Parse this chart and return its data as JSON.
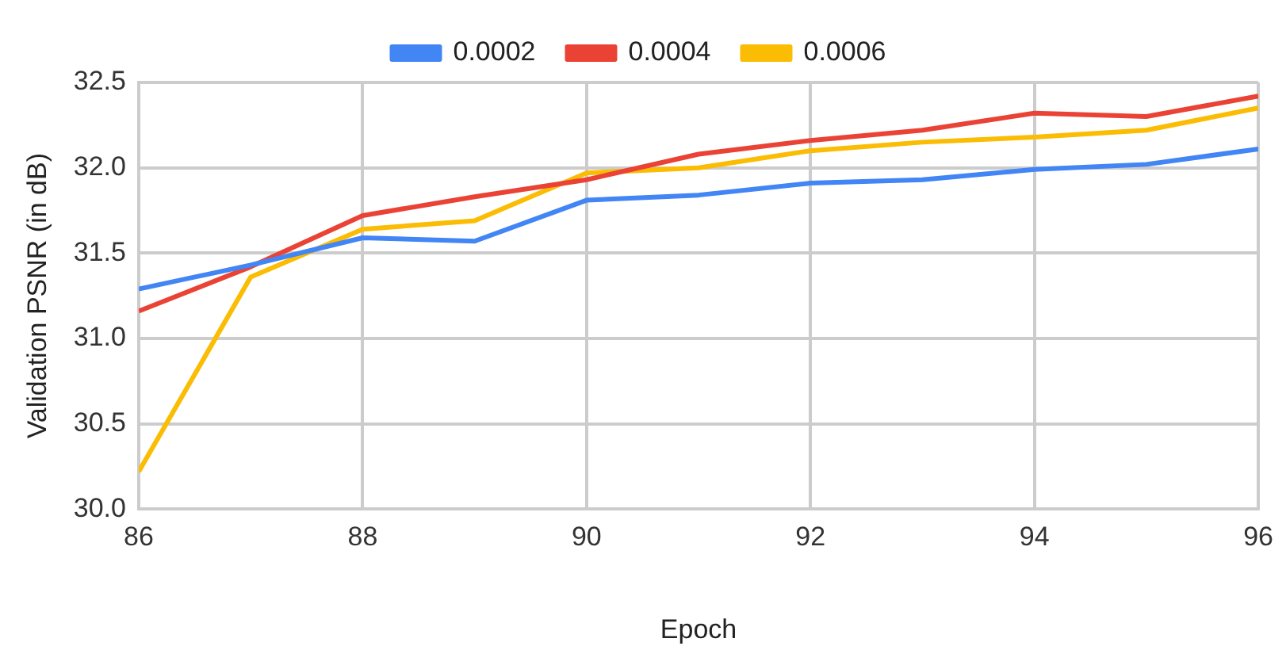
{
  "chart_data": {
    "type": "line",
    "xlabel": "Epoch",
    "ylabel": "Validation PSNR (in dB)",
    "x": [
      86,
      87,
      88,
      89,
      90,
      91,
      92,
      93,
      94,
      95,
      96
    ],
    "series": [
      {
        "name": "0.0002",
        "color": "#4285f4",
        "values": [
          31.29,
          31.43,
          31.59,
          31.57,
          31.81,
          31.84,
          31.91,
          31.93,
          31.99,
          32.02,
          32.11
        ]
      },
      {
        "name": "0.0004",
        "color": "#ea4335",
        "values": [
          31.16,
          31.42,
          31.72,
          31.83,
          31.93,
          32.08,
          32.16,
          32.22,
          32.32,
          32.3,
          32.42
        ]
      },
      {
        "name": "0.0006",
        "color": "#fbbc04",
        "values": [
          30.22,
          31.36,
          31.64,
          31.69,
          31.97,
          32.0,
          32.1,
          32.15,
          32.18,
          32.22,
          32.35
        ]
      }
    ],
    "xlim": [
      86,
      96
    ],
    "xticks": [
      86,
      88,
      90,
      92,
      94,
      96
    ],
    "ylim": [
      30,
      32.5
    ],
    "yticks": [
      {
        "value": 30,
        "label": "30.0"
      },
      {
        "value": 30.5,
        "label": "30.5"
      },
      {
        "value": 31,
        "label": "31.0"
      },
      {
        "value": 31.5,
        "label": "31.5"
      },
      {
        "value": 32,
        "label": "32.0"
      },
      {
        "value": 32.5,
        "label": "32.5"
      }
    ],
    "grid": true,
    "legend": "top",
    "marker": "none",
    "line_style": "solid"
  }
}
